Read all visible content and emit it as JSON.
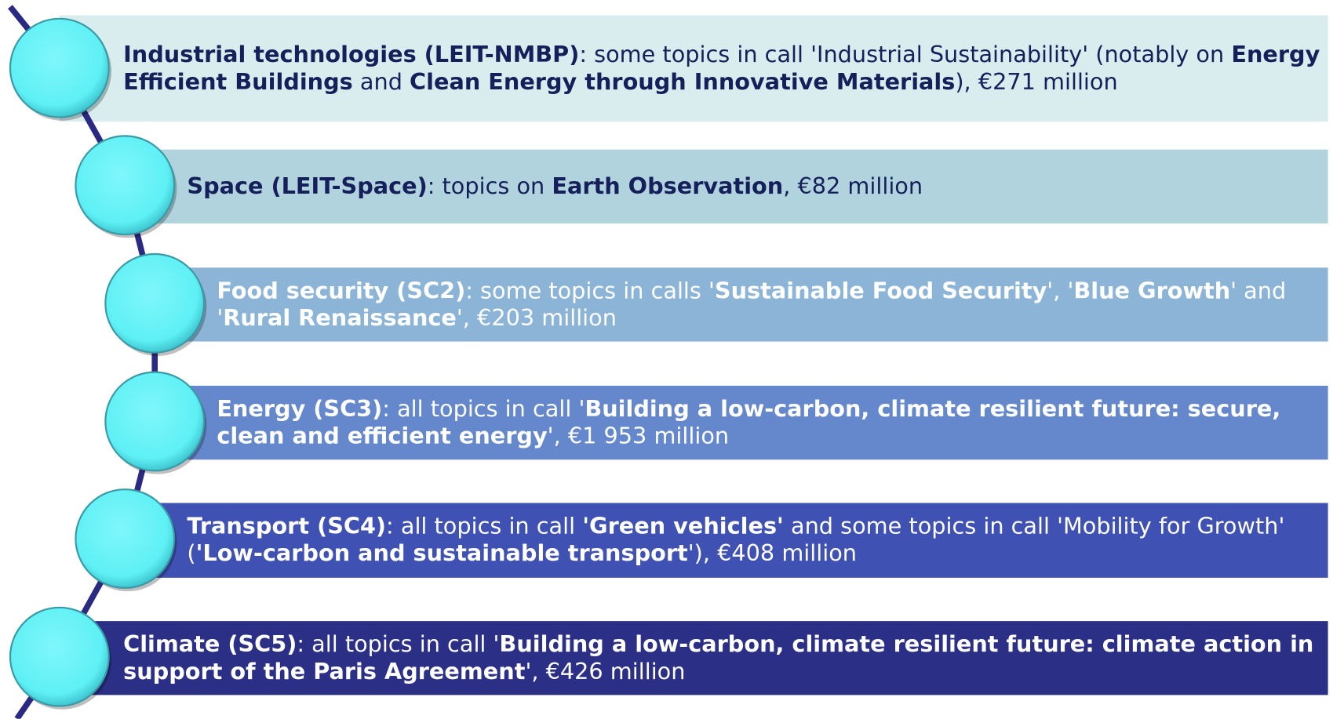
{
  "items": [
    {
      "fill": "#d9ecee",
      "text_color": "#15205a",
      "parts": [
        {
          "text": "Industrial technologies (LEIT-NMBP)",
          "bold": true
        },
        {
          "text": ": some topics in call 'Industrial Sustainability' (notably on ",
          "bold": false
        },
        {
          "text": "Energy Efficient Buildings",
          "bold": true
        },
        {
          "text": " and ",
          "bold": false
        },
        {
          "text": "Clean Energy through Innovative Materials",
          "bold": true
        },
        {
          "text": "), €271 million",
          "bold": false
        }
      ]
    },
    {
      "fill": "#b1d3de",
      "text_color": "#15205a",
      "parts": [
        {
          "text": "Space (LEIT-Space)",
          "bold": true
        },
        {
          "text": ": topics on ",
          "bold": false
        },
        {
          "text": "Earth Observation",
          "bold": true
        },
        {
          "text": ", €82 million",
          "bold": false
        }
      ]
    },
    {
      "fill": "#8cb4d6",
      "text_color": "#ffffff",
      "parts": [
        {
          "text": "Food security (SC2)",
          "bold": true
        },
        {
          "text": ": some topics in calls '",
          "bold": false
        },
        {
          "text": "Sustainable Food Security",
          "bold": true
        },
        {
          "text": "', '",
          "bold": false
        },
        {
          "text": "Blue Growth",
          "bold": true
        },
        {
          "text": "' and '",
          "bold": false
        },
        {
          "text": "Rural Renaissance",
          "bold": true
        },
        {
          "text": "', €203 million",
          "bold": false
        }
      ]
    },
    {
      "fill": "#6587cb",
      "text_color": "#ffffff",
      "parts": [
        {
          "text": "Energy (SC3)",
          "bold": true
        },
        {
          "text": ": all topics in call '",
          "bold": false
        },
        {
          "text": "Building a low-carbon, climate resilient future: secure, clean and efficient energy",
          "bold": true
        },
        {
          "text": "', €1 953 million",
          "bold": false
        }
      ]
    },
    {
      "fill": "#3f51b2",
      "text_color": "#ffffff",
      "parts": [
        {
          "text": "Transport (SC4)",
          "bold": true
        },
        {
          "text": ": all topics in call ",
          "bold": false
        },
        {
          "text": "'Green vehicles'",
          "bold": true
        },
        {
          "text": " and some topics in call 'Mobility for Growth' (",
          "bold": false
        },
        {
          "text": "'Low-carbon and sustainable transport",
          "bold": true
        },
        {
          "text": "'), €408 million",
          "bold": false
        }
      ]
    },
    {
      "fill": "#2b2f86",
      "text_color": "#ffffff",
      "parts": [
        {
          "text": "Climate (SC5)",
          "bold": true
        },
        {
          "text": ": all topics in call '",
          "bold": false
        },
        {
          "text": "Building a low-carbon, climate resilient future: climate action in support of the Paris Agreement",
          "bold": true
        },
        {
          "text": "', €426 million",
          "bold": false
        }
      ]
    }
  ]
}
